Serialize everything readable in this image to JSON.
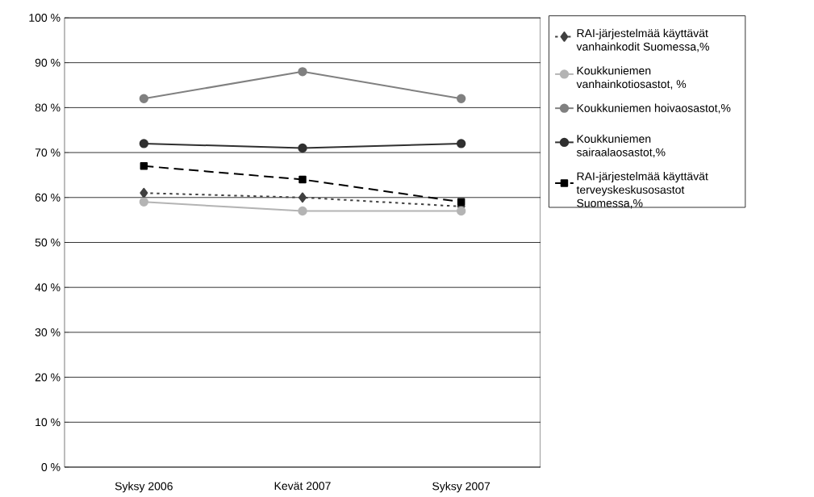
{
  "chart_data": {
    "type": "line",
    "categories": [
      "Syksy 2006",
      "Kevät 2007",
      "Syksy 2007"
    ],
    "series": [
      {
        "name": "RAI-järjestelmää käyttävät vanhainkodit Suomessa,%",
        "color": "#404040",
        "marker": "diamond",
        "line_style": "dotted",
        "values": [
          61,
          60,
          58
        ]
      },
      {
        "name": "Koukkuniemen vanhainkotiosastot, %",
        "color": "#b4b4b4",
        "marker": "circle",
        "line_style": "solid",
        "values": [
          59,
          57,
          57
        ]
      },
      {
        "name": "Koukkuniemen hoivaosastot,%",
        "color": "#808080",
        "marker": "circle",
        "line_style": "solid",
        "values": [
          82,
          88,
          82
        ]
      },
      {
        "name": "Koukkuniemen sairaalaosastot,%",
        "color": "#303030",
        "marker": "circle",
        "line_style": "solid",
        "values": [
          72,
          71,
          72
        ]
      },
      {
        "name": "RAI-järjestelmää käyttävät terveyskeskusosastot Suomessa,%",
        "color": "#000000",
        "marker": "square",
        "line_style": "dashed",
        "values": [
          67,
          64,
          59
        ]
      }
    ],
    "ylim": [
      0,
      100
    ],
    "yticks": [
      {
        "value": 0,
        "label": "0 %"
      },
      {
        "value": 10,
        "label": "10 %"
      },
      {
        "value": 20,
        "label": "20 %"
      },
      {
        "value": 30,
        "label": "30 %"
      },
      {
        "value": 40,
        "label": "40 %"
      },
      {
        "value": 50,
        "label": "50 %"
      },
      {
        "value": 60,
        "label": "60 %"
      },
      {
        "value": 70,
        "label": "70 %"
      },
      {
        "value": 80,
        "label": "80 %"
      },
      {
        "value": 90,
        "label": "90 %"
      },
      {
        "value": 100,
        "label": "100 %"
      }
    ],
    "grid": "y",
    "legend": "right"
  }
}
